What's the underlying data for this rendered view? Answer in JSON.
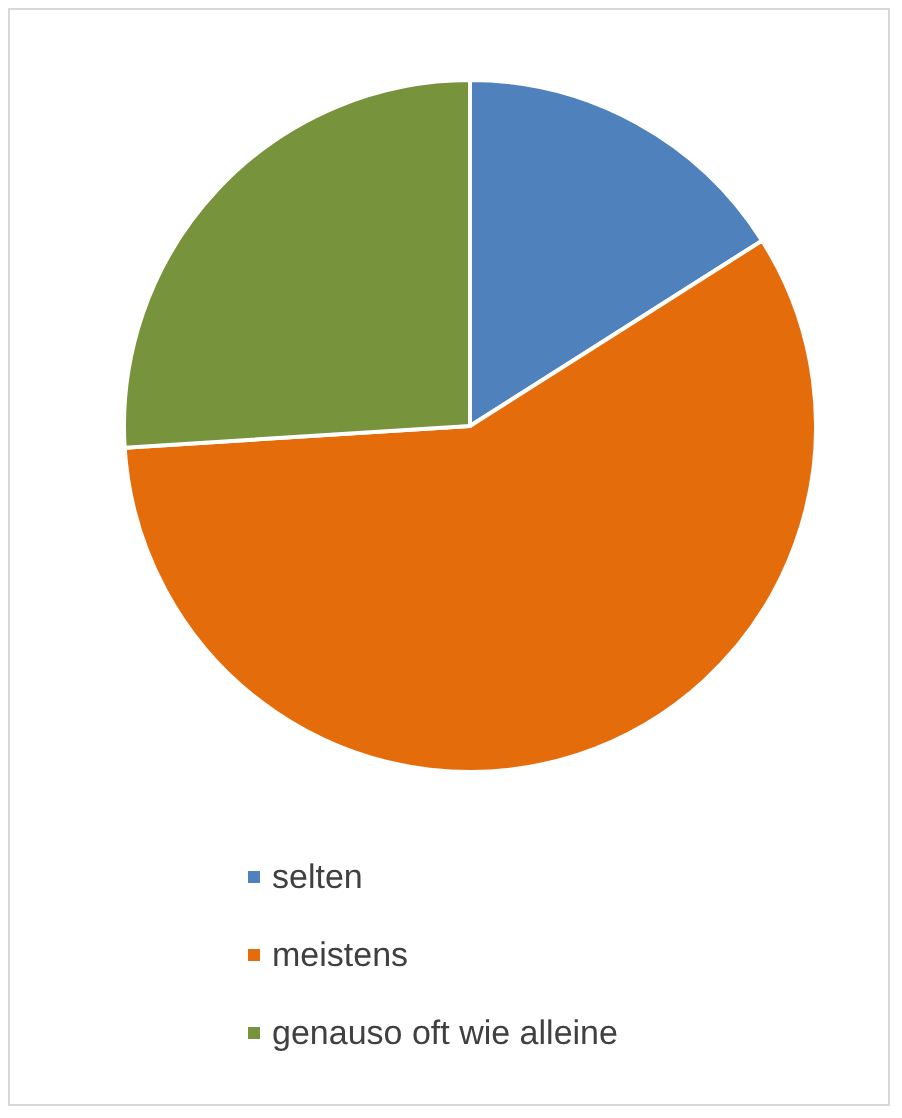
{
  "chart_data": {
    "type": "pie",
    "categories": [
      "selten",
      "meistens",
      "genauso oft wie alleine"
    ],
    "values": [
      16,
      58,
      26
    ],
    "colors": [
      "#4f81bd",
      "#e46c0a",
      "#77933c"
    ],
    "legend": "bottom"
  }
}
